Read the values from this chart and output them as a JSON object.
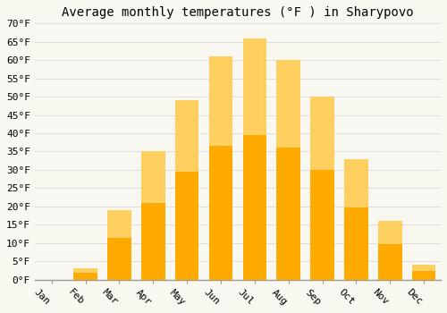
{
  "title": "Average monthly temperatures (°F ) in Sharypovo",
  "months": [
    "Jan",
    "Feb",
    "Mar",
    "Apr",
    "May",
    "Jun",
    "Jul",
    "Aug",
    "Sep",
    "Oct",
    "Nov",
    "Dec"
  ],
  "values": [
    0,
    3,
    19,
    35,
    49,
    61,
    66,
    60,
    50,
    33,
    16,
    4
  ],
  "bar_color_main": "#FFAA00",
  "bar_color_gradient_top": "#FFD060",
  "background_color": "#F8F8F0",
  "grid_color": "#DDDDDD",
  "ylim": [
    0,
    70
  ],
  "ytick_step": 5,
  "ylabel_suffix": "°F",
  "title_fontsize": 10,
  "tick_fontsize": 8,
  "font_family": "monospace",
  "xlabel_rotation": -45
}
